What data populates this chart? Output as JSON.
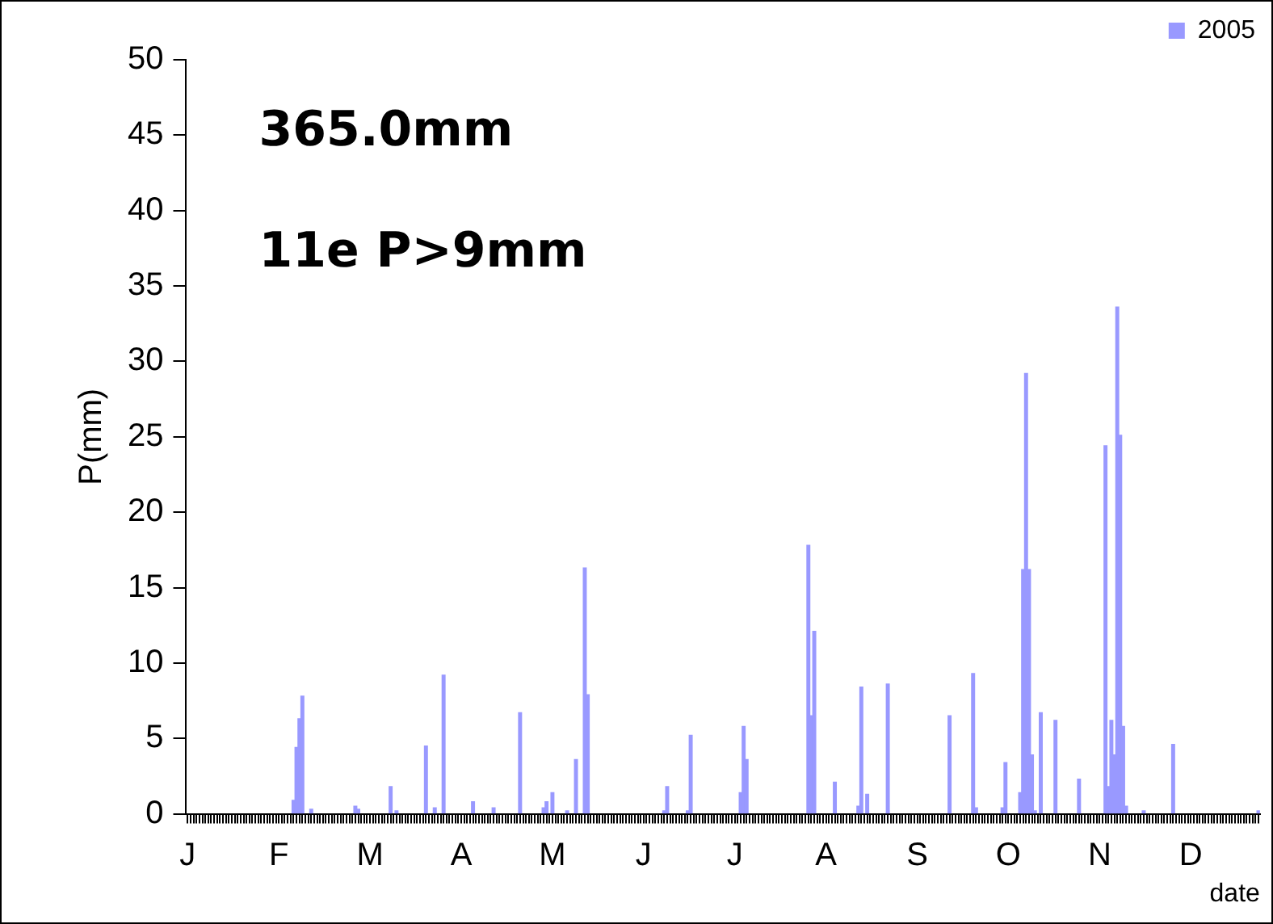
{
  "chart_data": {
    "type": "bar",
    "xlabel": "date",
    "ylabel": "P(mm)",
    "annotations": [
      "365.0mm",
      "11e P>9mm"
    ],
    "categories": [
      "J",
      null,
      null,
      null,
      null,
      null,
      null,
      null,
      null,
      null,
      null,
      null,
      null,
      null,
      null,
      null,
      null,
      null,
      null,
      null,
      null,
      null,
      null,
      null,
      null,
      null,
      null,
      null,
      null,
      null,
      null,
      "F",
      null,
      null,
      null,
      null,
      null,
      null,
      null,
      null,
      null,
      null,
      null,
      null,
      null,
      null,
      null,
      null,
      null,
      null,
      null,
      null,
      null,
      null,
      null,
      null,
      null,
      null,
      null,
      null,
      null,
      null,
      "M",
      null,
      null,
      null,
      null,
      null,
      null,
      null,
      null,
      null,
      null,
      null,
      null,
      null,
      null,
      null,
      null,
      null,
      null,
      null,
      null,
      null,
      null,
      null,
      null,
      null,
      null,
      null,
      null,
      null,
      null,
      "A",
      null,
      null,
      null,
      null,
      null,
      null,
      null,
      null,
      null,
      null,
      null,
      null,
      null,
      null,
      null,
      null,
      null,
      null,
      null,
      null,
      null,
      null,
      null,
      null,
      null,
      null,
      null,
      null,
      null,
      null,
      "M",
      null,
      null,
      null,
      null,
      null,
      null,
      null,
      null,
      null,
      null,
      null,
      null,
      null,
      null,
      null,
      null,
      null,
      null,
      null,
      null,
      null,
      null,
      null,
      null,
      null,
      null,
      null,
      null,
      null,
      null,
      "J",
      null,
      null,
      null,
      null,
      null,
      null,
      null,
      null,
      null,
      null,
      null,
      null,
      null,
      null,
      null,
      null,
      null,
      null,
      null,
      null,
      null,
      null,
      null,
      null,
      null,
      null,
      null,
      null,
      null,
      null,
      "J",
      null,
      null,
      null,
      null,
      null,
      null,
      null,
      null,
      null,
      null,
      null,
      null,
      null,
      null,
      null,
      null,
      null,
      null,
      null,
      null,
      null,
      null,
      null,
      null,
      null,
      null,
      null,
      null,
      null,
      null,
      "A",
      null,
      null,
      null,
      null,
      null,
      null,
      null,
      null,
      null,
      null,
      null,
      null,
      null,
      null,
      null,
      null,
      null,
      null,
      null,
      null,
      null,
      null,
      null,
      null,
      null,
      null,
      null,
      null,
      null,
      null,
      "S",
      null,
      null,
      null,
      null,
      null,
      null,
      null,
      null,
      null,
      null,
      null,
      null,
      null,
      null,
      null,
      null,
      null,
      null,
      null,
      null,
      null,
      null,
      null,
      null,
      null,
      null,
      null,
      null,
      null,
      null,
      "O",
      null,
      null,
      null,
      null,
      null,
      null,
      null,
      null,
      null,
      null,
      null,
      null,
      null,
      null,
      null,
      null,
      null,
      null,
      null,
      null,
      null,
      null,
      null,
      null,
      null,
      null,
      null,
      null,
      null,
      null,
      "N",
      null,
      null,
      null,
      null,
      null,
      null,
      null,
      null,
      null,
      null,
      null,
      null,
      null,
      null,
      null,
      null,
      null,
      null,
      null,
      null,
      null,
      null,
      null,
      null,
      null,
      null,
      null,
      null,
      null,
      null,
      "D",
      null,
      null,
      null,
      null,
      null,
      null,
      null,
      null,
      null,
      null,
      null,
      null,
      null,
      null,
      null,
      null,
      null,
      null,
      null,
      null,
      null,
      null,
      null
    ],
    "series": [
      {
        "name": "2005",
        "color": "#9999ff",
        "values": [
          null,
          null,
          null,
          null,
          null,
          null,
          null,
          null,
          null,
          null,
          null,
          null,
          null,
          null,
          null,
          null,
          null,
          null,
          null,
          null,
          null,
          null,
          null,
          null,
          null,
          null,
          null,
          null,
          null,
          null,
          null,
          null,
          null,
          null,
          null,
          null,
          0.9,
          4.4,
          6.3,
          7.8,
          null,
          null,
          0.3,
          null,
          null,
          null,
          null,
          null,
          null,
          null,
          null,
          null,
          null,
          null,
          null,
          null,
          null,
          0.5,
          0.3,
          null,
          null,
          null,
          null,
          null,
          null,
          null,
          null,
          null,
          null,
          1.8,
          null,
          0.2,
          null,
          null,
          null,
          null,
          null,
          null,
          null,
          null,
          null,
          4.5,
          null,
          null,
          0.4,
          null,
          null,
          9.2,
          null,
          null,
          null,
          null,
          null,
          null,
          null,
          null,
          null,
          0.8,
          null,
          null,
          null,
          null,
          null,
          null,
          0.4,
          null,
          null,
          null,
          null,
          null,
          null,
          null,
          null,
          6.7,
          null,
          null,
          null,
          null,
          null,
          null,
          null,
          0.4,
          0.8,
          null,
          1.4,
          null,
          null,
          null,
          null,
          0.2,
          null,
          null,
          3.6,
          null,
          null,
          16.3,
          7.9,
          null,
          null,
          null,
          null,
          null,
          null,
          null,
          null,
          null,
          null,
          null,
          null,
          null,
          null,
          null,
          null,
          null,
          null,
          null,
          null,
          null,
          null,
          null,
          null,
          null,
          0.2,
          1.8,
          null,
          null,
          null,
          null,
          null,
          null,
          0.2,
          5.2,
          null,
          null,
          null,
          null,
          null,
          null,
          null,
          null,
          null,
          null,
          null,
          null,
          null,
          null,
          null,
          null,
          1.4,
          5.8,
          3.6,
          null,
          null,
          null,
          null,
          null,
          null,
          null,
          null,
          null,
          null,
          null,
          null,
          null,
          null,
          null,
          null,
          null,
          null,
          null,
          null,
          17.8,
          6.5,
          12.1,
          null,
          null,
          null,
          null,
          null,
          null,
          2.1,
          null,
          null,
          null,
          null,
          null,
          null,
          null,
          0.5,
          8.4,
          null,
          1.3,
          null,
          null,
          null,
          null,
          null,
          null,
          8.6,
          null,
          null,
          null,
          null,
          null,
          null,
          null,
          null,
          null,
          null,
          null,
          null,
          null,
          null,
          null,
          null,
          null,
          null,
          null,
          null,
          6.5,
          null,
          null,
          null,
          null,
          null,
          null,
          null,
          9.3,
          0.4,
          null,
          null,
          null,
          null,
          null,
          null,
          null,
          null,
          0.4,
          3.4,
          null,
          null,
          null,
          null,
          1.4,
          16.2,
          29.2,
          16.2,
          3.9,
          0.2,
          null,
          6.7,
          null,
          null,
          null,
          null,
          6.2,
          null,
          null,
          null,
          null,
          null,
          null,
          null,
          2.3,
          null,
          null,
          null,
          null,
          null,
          null,
          null,
          null,
          24.4,
          1.8,
          6.2,
          3.9,
          33.6,
          25.1,
          5.8,
          0.5,
          null,
          null,
          null,
          null,
          null,
          0.2,
          null,
          null,
          null,
          null,
          null,
          null,
          null,
          null,
          null,
          4.6,
          null,
          null,
          null,
          null,
          null,
          null,
          null,
          null,
          null,
          null,
          null,
          null,
          null,
          null,
          null,
          null,
          null,
          null,
          null,
          null,
          null,
          null,
          null,
          null,
          null,
          null,
          null,
          null,
          0.2
        ]
      }
    ],
    "ylim": [
      0,
      50
    ],
    "yticks": [
      0,
      5,
      10,
      15,
      20,
      25,
      30,
      35,
      40,
      45,
      50
    ],
    "grid": false,
    "legend": "top right"
  }
}
